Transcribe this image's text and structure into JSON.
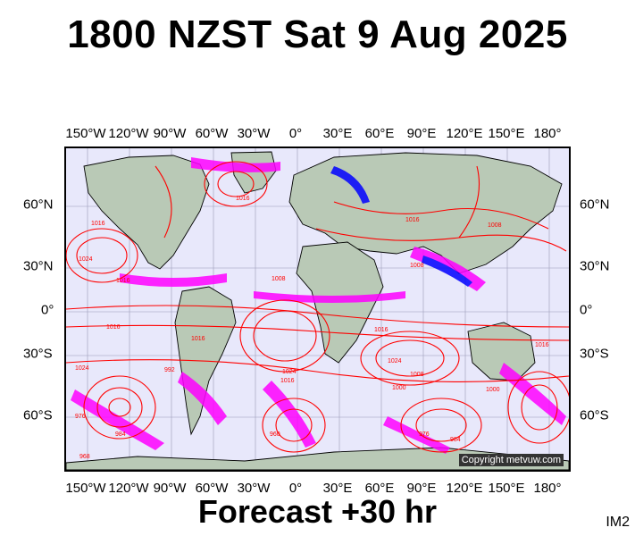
{
  "title": "1800 NZST Sat 9 Aug 2025",
  "footer": "Forecast +30 hr",
  "corner_label": "IM2",
  "copyright": "Copyright metvuw.com",
  "lon_labels": [
    "150°W",
    "120°W",
    "90°W",
    "60°W",
    "30°W",
    "0°",
    "30°E",
    "60°E",
    "90°E",
    "120°E",
    "150°E",
    "180°"
  ],
  "lat_labels_left": [
    "60°N",
    "30°N",
    "0°",
    "30°S",
    "60°S"
  ],
  "lat_labels_right": [
    "60°N",
    "30°N",
    "0°",
    "30°S",
    "60°S"
  ],
  "isobar_labels": [
    "1016",
    "1024",
    "1016",
    "1008",
    "1016",
    "1016",
    "1024",
    "1016",
    "1000",
    "960",
    "976",
    "984",
    "992",
    "1024",
    "1008",
    "1016",
    "1024",
    "1016",
    "1000",
    "1008",
    "1016",
    "1008",
    "976",
    "984",
    "968",
    "1016"
  ],
  "colors": {
    "background": "#e8e8fb",
    "land": "#b9c9b6",
    "isobar": "#ff0000",
    "precip_light": "#ff00ff",
    "precip_heavy": "#0000ff",
    "coastline": "#000000"
  }
}
